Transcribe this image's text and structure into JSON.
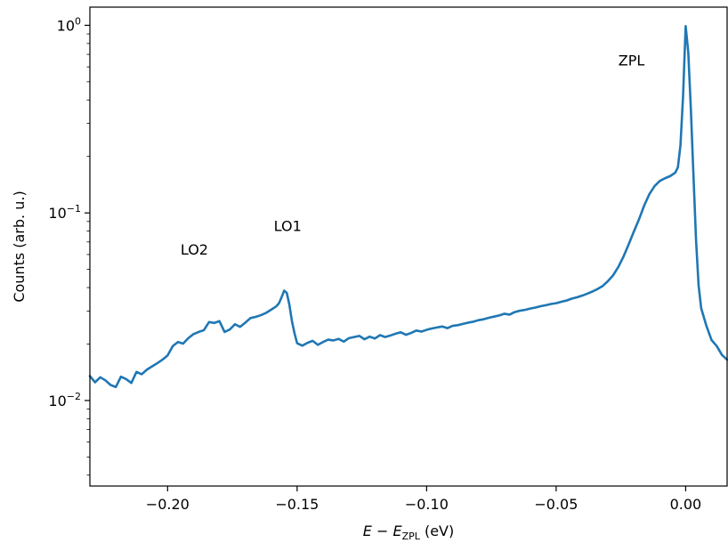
{
  "chart_data": {
    "type": "line",
    "title": "",
    "xlabel": {
      "main": "E − E",
      "subscript": "ZPL",
      "unit": " (eV)"
    },
    "ylabel": "Counts (arb. u.)",
    "xlim": [
      -0.23,
      0.016
    ],
    "ylim": [
      0.0035,
      1.25
    ],
    "yscale": "log",
    "grid": false,
    "x_ticks": [
      -0.2,
      -0.15,
      -0.1,
      -0.05,
      0.0
    ],
    "x_tick_labels": [
      "−0.20",
      "−0.15",
      "−0.10",
      "−0.05",
      "0.00"
    ],
    "y_ticks": [
      {
        "value": 0.01,
        "base": "10",
        "exp": "−2"
      },
      {
        "value": 0.1,
        "base": "10",
        "exp": "−1"
      },
      {
        "value": 1.0,
        "base": "10",
        "exp": "0"
      }
    ],
    "annotations": [
      {
        "text": "ZPL",
        "x": -0.026,
        "y": 0.61
      },
      {
        "text": "LO1",
        "x": -0.159,
        "y": 0.08
      },
      {
        "text": "LO2",
        "x": -0.195,
        "y": 0.06
      }
    ],
    "series": [
      {
        "color": "#1f77b4",
        "x": [
          -0.23,
          -0.228,
          -0.226,
          -0.224,
          -0.222,
          -0.22,
          -0.218,
          -0.216,
          -0.214,
          -0.212,
          -0.21,
          -0.208,
          -0.206,
          -0.204,
          -0.202,
          -0.2,
          -0.198,
          -0.196,
          -0.194,
          -0.192,
          -0.19,
          -0.188,
          -0.186,
          -0.184,
          -0.182,
          -0.18,
          -0.178,
          -0.176,
          -0.174,
          -0.172,
          -0.17,
          -0.168,
          -0.166,
          -0.164,
          -0.162,
          -0.16,
          -0.158,
          -0.157,
          -0.156,
          -0.155,
          -0.154,
          -0.153,
          -0.152,
          -0.151,
          -0.15,
          -0.148,
          -0.146,
          -0.144,
          -0.142,
          -0.14,
          -0.138,
          -0.136,
          -0.134,
          -0.132,
          -0.13,
          -0.128,
          -0.126,
          -0.124,
          -0.122,
          -0.12,
          -0.118,
          -0.116,
          -0.114,
          -0.112,
          -0.11,
          -0.108,
          -0.106,
          -0.104,
          -0.102,
          -0.1,
          -0.098,
          -0.096,
          -0.094,
          -0.092,
          -0.09,
          -0.088,
          -0.086,
          -0.084,
          -0.082,
          -0.08,
          -0.078,
          -0.076,
          -0.074,
          -0.072,
          -0.07,
          -0.068,
          -0.066,
          -0.064,
          -0.062,
          -0.06,
          -0.058,
          -0.056,
          -0.054,
          -0.052,
          -0.05,
          -0.048,
          -0.046,
          -0.044,
          -0.042,
          -0.04,
          -0.038,
          -0.036,
          -0.034,
          -0.032,
          -0.03,
          -0.028,
          -0.026,
          -0.024,
          -0.022,
          -0.02,
          -0.018,
          -0.016,
          -0.014,
          -0.012,
          -0.01,
          -0.008,
          -0.006,
          -0.004,
          -0.003,
          -0.002,
          -0.001,
          0.0,
          0.001,
          0.002,
          0.003,
          0.004,
          0.005,
          0.006,
          0.008,
          0.01,
          0.012,
          0.014,
          0.016
        ],
        "y": [
          0.0135,
          0.0125,
          0.0133,
          0.0128,
          0.0121,
          0.0118,
          0.0134,
          0.013,
          0.0124,
          0.0142,
          0.0138,
          0.0146,
          0.0152,
          0.0158,
          0.0165,
          0.0174,
          0.0195,
          0.0205,
          0.0201,
          0.0215,
          0.0226,
          0.0232,
          0.0237,
          0.0262,
          0.0259,
          0.0265,
          0.0232,
          0.0239,
          0.0255,
          0.0247,
          0.026,
          0.0275,
          0.0279,
          0.0285,
          0.0293,
          0.0305,
          0.0318,
          0.033,
          0.0355,
          0.0385,
          0.0375,
          0.0325,
          0.0265,
          0.0228,
          0.0202,
          0.0196,
          0.0203,
          0.0208,
          0.0198,
          0.0205,
          0.0211,
          0.0209,
          0.0213,
          0.0206,
          0.0215,
          0.0218,
          0.0221,
          0.0212,
          0.0219,
          0.0214,
          0.0223,
          0.0218,
          0.0222,
          0.0227,
          0.0231,
          0.0224,
          0.0229,
          0.0236,
          0.0233,
          0.0238,
          0.0242,
          0.0245,
          0.0248,
          0.0243,
          0.025,
          0.0252,
          0.0256,
          0.026,
          0.0263,
          0.0268,
          0.0271,
          0.0276,
          0.028,
          0.0284,
          0.029,
          0.0287,
          0.0296,
          0.0301,
          0.0304,
          0.0309,
          0.0313,
          0.0318,
          0.0322,
          0.0327,
          0.033,
          0.0336,
          0.0341,
          0.0349,
          0.0355,
          0.0362,
          0.0371,
          0.0381,
          0.0393,
          0.0408,
          0.0433,
          0.0465,
          0.0515,
          0.0585,
          0.068,
          0.0795,
          0.0925,
          0.1095,
          0.126,
          0.139,
          0.148,
          0.153,
          0.157,
          0.164,
          0.175,
          0.23,
          0.42,
          0.99,
          0.72,
          0.36,
          0.16,
          0.072,
          0.041,
          0.031,
          0.025,
          0.021,
          0.0195,
          0.0175,
          0.0165
        ]
      }
    ]
  }
}
